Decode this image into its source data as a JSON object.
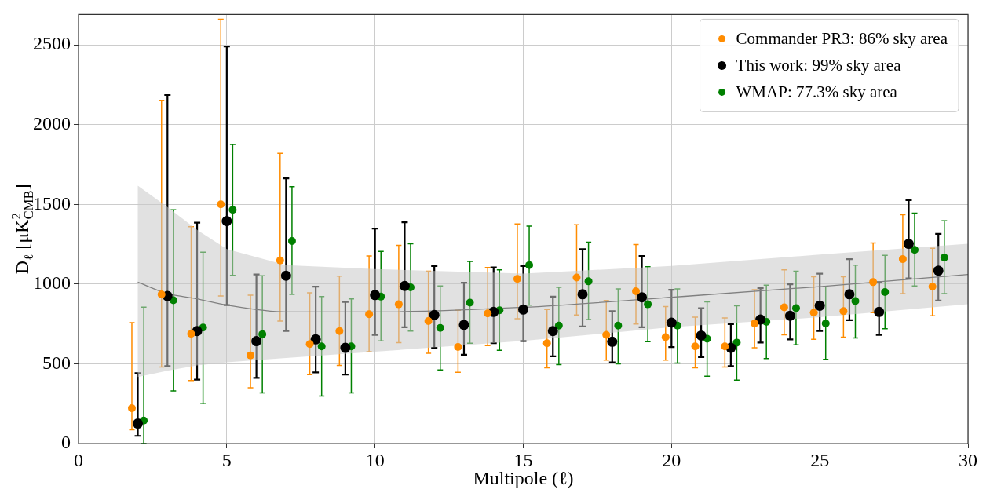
{
  "chart_data": {
    "type": "scatter",
    "xlabel": "Multipole (ℓ)",
    "ylabel": "D$_{ℓ}$ [μK$^{2}$$_{CMB}$]",
    "xlim": [
      0,
      30
    ],
    "xticks": [
      0,
      5,
      10,
      15,
      20,
      25,
      30
    ],
    "ylim": [
      0,
      2690
    ],
    "yticks": [
      0,
      500,
      1000,
      1500,
      2000,
      2500
    ],
    "grid": true,
    "legend": "top right",
    "marker": "circle",
    "series": [
      {
        "name": "Commander PR3: 86% sky area",
        "color": "#ff8c00",
        "x": [
          1.8,
          2.8,
          3.8,
          4.8,
          5.8,
          6.8,
          7.8,
          8.8,
          9.8,
          10.8,
          11.8,
          12.8,
          13.8,
          14.8,
          15.8,
          16.8,
          17.8,
          18.8,
          19.8,
          20.8,
          21.8,
          22.8,
          23.8,
          24.8,
          25.8,
          26.8,
          27.8,
          28.8
        ],
        "values": [
          221,
          935,
          688,
          1500,
          553,
          1148,
          624,
          705,
          811,
          873,
          768,
          605,
          816,
          1032,
          629,
          1041,
          681,
          955,
          667,
          609,
          609,
          753,
          854,
          821,
          830,
          1012,
          1156,
          984
        ],
        "errors": [
          [
            86,
            758
          ],
          [
            480,
            2150
          ],
          [
            395,
            1360
          ],
          [
            925,
            2660
          ],
          [
            350,
            930
          ],
          [
            768,
            1820
          ],
          [
            432,
            945
          ],
          [
            490,
            1050
          ],
          [
            576,
            1176
          ],
          [
            633,
            1243
          ],
          [
            566,
            1080
          ],
          [
            446,
            835
          ],
          [
            614,
            1104
          ],
          [
            782,
            1377
          ],
          [
            475,
            840
          ],
          [
            806,
            1372
          ],
          [
            523,
            897
          ],
          [
            749,
            1248
          ],
          [
            523,
            859
          ],
          [
            475,
            792
          ],
          [
            480,
            787
          ],
          [
            600,
            964
          ],
          [
            681,
            1089
          ],
          [
            653,
            1046
          ],
          [
            667,
            1046
          ],
          [
            821,
            1257
          ],
          [
            940,
            1435
          ],
          [
            801,
            1224
          ]
        ]
      },
      {
        "name": "This work: 99% sky area",
        "color": "#000000",
        "x": [
          2,
          3,
          4,
          5,
          6,
          7,
          8,
          9,
          10,
          11,
          12,
          13,
          14,
          15,
          16,
          17,
          18,
          19,
          20,
          21,
          22,
          23,
          24,
          25,
          26,
          27,
          28,
          29
        ],
        "values": [
          125,
          925,
          705,
          1395,
          642,
          1052,
          653,
          600,
          931,
          988,
          806,
          744,
          825,
          840,
          705,
          936,
          638,
          917,
          758,
          677,
          600,
          777,
          801,
          864,
          936,
          825,
          1252,
          1084
        ],
        "errors": [
          [
            48,
            441
          ],
          [
            485,
            2185
          ],
          [
            400,
            1385
          ],
          [
            868,
            2490
          ],
          [
            412,
            1060
          ],
          [
            706,
            1663
          ],
          [
            446,
            984
          ],
          [
            432,
            888
          ],
          [
            681,
            1348
          ],
          [
            729,
            1387
          ],
          [
            600,
            1113
          ],
          [
            557,
            1008
          ],
          [
            629,
            1104
          ],
          [
            643,
            1113
          ],
          [
            547,
            921
          ],
          [
            734,
            1219
          ],
          [
            509,
            830
          ],
          [
            729,
            1176
          ],
          [
            605,
            964
          ],
          [
            542,
            849
          ],
          [
            485,
            749
          ],
          [
            633,
            974
          ],
          [
            653,
            998
          ],
          [
            705,
            1065
          ],
          [
            773,
            1156
          ],
          [
            681,
            1012
          ],
          [
            1036,
            1526
          ],
          [
            897,
            1315
          ]
        ]
      },
      {
        "name": "WMAP: 77.3% sky area",
        "color": "#008000",
        "x": [
          2.2,
          3.2,
          4.2,
          5.2,
          6.2,
          7.2,
          8.2,
          9.2,
          10.2,
          11.2,
          12.2,
          13.2,
          14.2,
          15.2,
          16.2,
          17.2,
          18.2,
          19.2,
          20.2,
          21.2,
          22.2,
          23.2,
          24.2,
          25.2,
          26.2,
          27.2,
          28.2,
          29.2
        ],
        "values": [
          144,
          898,
          727,
          1465,
          685,
          1270,
          609,
          609,
          921,
          979,
          725,
          883,
          835,
          1118,
          739,
          1017,
          739,
          873,
          739,
          657,
          633,
          763,
          849,
          753,
          893,
          950,
          1214,
          1166
        ],
        "errors": [
          [
            0,
            855
          ],
          [
            330,
            1465
          ],
          [
            250,
            1200
          ],
          [
            1055,
            1875
          ],
          [
            317,
            1052
          ],
          [
            935,
            1610
          ],
          [
            298,
            921
          ],
          [
            317,
            907
          ],
          [
            643,
            1204
          ],
          [
            705,
            1252
          ],
          [
            461,
            988
          ],
          [
            629,
            1142
          ],
          [
            585,
            1089
          ],
          [
            868,
            1363
          ],
          [
            494,
            979
          ],
          [
            777,
            1262
          ],
          [
            499,
            969
          ],
          [
            638,
            1108
          ],
          [
            504,
            969
          ],
          [
            422,
            888
          ],
          [
            398,
            864
          ],
          [
            533,
            993
          ],
          [
            619,
            1080
          ],
          [
            528,
            984
          ],
          [
            662,
            1118
          ],
          [
            720,
            1180
          ],
          [
            988,
            1444
          ],
          [
            940,
            1396
          ]
        ]
      },
      {
        "type": "line",
        "marker": "none",
        "color": "#808080",
        "x": [
          2,
          3,
          4,
          5,
          7,
          10,
          15,
          20,
          25,
          30
        ],
        "values": [
          1012,
          940,
          907,
          868,
          825,
          825,
          854,
          917,
          984,
          1060
        ],
        "lower": [
          417,
          456,
          490,
          509,
          537,
          576,
          643,
          729,
          792,
          873
        ],
        "upper": [
          1617,
          1483,
          1340,
          1219,
          1118,
          1094,
          1065,
          1113,
          1185,
          1252
        ]
      }
    ]
  }
}
